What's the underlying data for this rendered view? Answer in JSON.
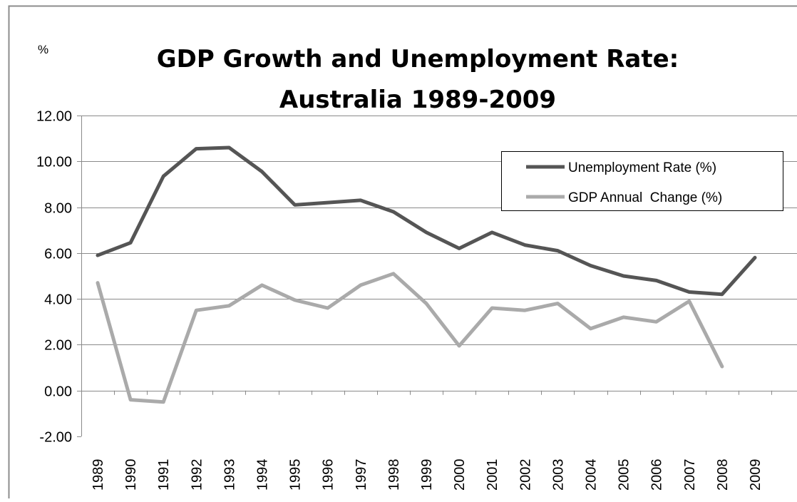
{
  "chart_data": {
    "type": "line",
    "title_lines": [
      "GDP Growth and Unemployment Rate:",
      "Australia 1989-2009"
    ],
    "ylabel": "%",
    "xlabel": "",
    "ylim": [
      -2,
      12
    ],
    "yticks": [
      -2,
      0,
      2,
      4,
      6,
      8,
      10,
      12
    ],
    "ytick_labels": [
      "-2.00",
      "0.00",
      "2.00",
      "4.00",
      "6.00",
      "8.00",
      "10.00",
      "12.00"
    ],
    "categories": [
      "1989",
      "1990",
      "1991",
      "1992",
      "1993",
      "1994",
      "1995",
      "1996",
      "1997",
      "1998",
      "1999",
      "2000",
      "2001",
      "2002",
      "2003",
      "2004",
      "2005",
      "2006",
      "2007",
      "2008",
      "2009"
    ],
    "grid": true,
    "legend_position": "top-right",
    "series": [
      {
        "name": "Unemployment Rate (%)",
        "color": "#555555",
        "values": [
          5.9,
          6.45,
          9.35,
          10.55,
          10.6,
          9.55,
          8.1,
          8.2,
          8.3,
          7.8,
          6.9,
          6.2,
          6.9,
          6.35,
          6.1,
          5.45,
          5.0,
          4.8,
          4.3,
          4.2,
          5.8
        ]
      },
      {
        "name": "GDP Annual  Change (%)",
        "color": "#aaaaaa",
        "values": [
          4.7,
          -0.4,
          -0.5,
          3.5,
          3.7,
          4.6,
          3.95,
          3.6,
          4.6,
          5.1,
          3.8,
          1.95,
          3.6,
          3.5,
          3.8,
          2.7,
          3.2,
          3.0,
          3.9,
          1.05,
          null
        ]
      }
    ]
  }
}
